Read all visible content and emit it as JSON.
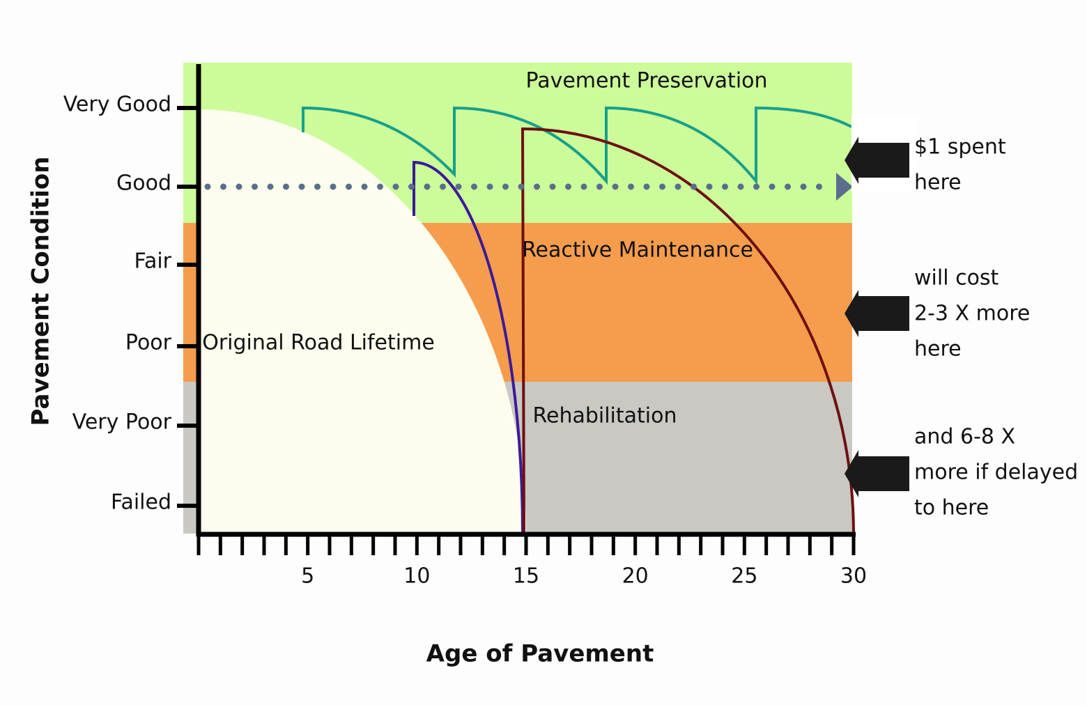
{
  "y_axis": {
    "title": "Pavement Condition",
    "levels": [
      "Very Good",
      "Good",
      "Fair",
      "Poor",
      "Very Poor",
      "Failed"
    ]
  },
  "x_axis": {
    "title": "Age of Pavement",
    "ticks": [
      "5",
      "10",
      "15",
      "20",
      "25",
      "30"
    ]
  },
  "regions": {
    "preservation": "Pavement Preservation",
    "reactive": "Reactive Maintenance",
    "rehabilitation": "Rehabilitation",
    "original": "Original Road Lifetime"
  },
  "notes": [
    [
      "$1 spent",
      "here"
    ],
    [
      "will cost",
      "2-3 X more",
      "here"
    ],
    [
      "and 6-8 X",
      "more if delayed",
      "to here"
    ]
  ]
}
